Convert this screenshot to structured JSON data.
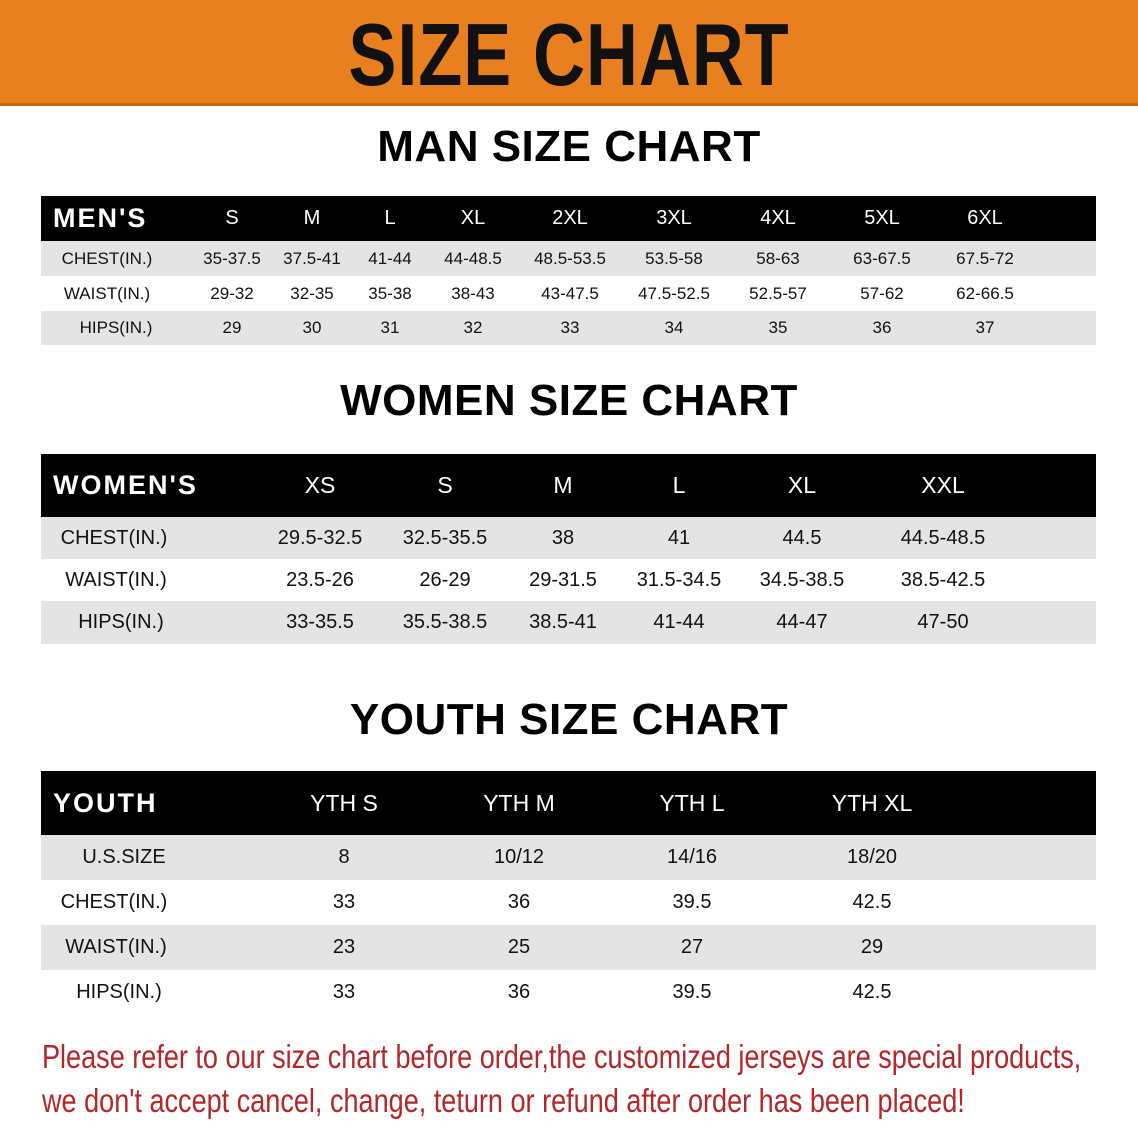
{
  "banner": {
    "title": "SIZE CHART",
    "color": "#e8801f"
  },
  "tables": [
    {
      "title": "MAN SIZE CHART",
      "header_label": "MEN'S",
      "sizes": [
        "S",
        "M",
        "L",
        "XL",
        "2XL",
        "3XL",
        "4XL",
        "5XL",
        "6XL"
      ],
      "rows": [
        {
          "label": "CHEST(IN.)",
          "values": [
            "35-37.5",
            "37.5-41",
            "41-44",
            "44-48.5",
            "48.5-53.5",
            "53.5-58",
            "58-63",
            "63-67.5",
            "67.5-72"
          ]
        },
        {
          "label": "WAIST(IN.)",
          "values": [
            "29-32",
            "32-35",
            "35-38",
            "38-43",
            "43-47.5",
            "47.5-52.5",
            "52.5-57",
            "57-62",
            "62-66.5"
          ]
        },
        {
          "label": "HIPS(IN.)",
          "values": [
            "29",
            "30",
            "31",
            "32",
            "33",
            "34",
            "35",
            "36",
            "37"
          ]
        }
      ]
    },
    {
      "title": "WOMEN SIZE CHART",
      "header_label": "WOMEN'S",
      "sizes": [
        "XS",
        "S",
        "M",
        "L",
        "XL",
        "XXL"
      ],
      "rows": [
        {
          "label": "CHEST(IN.)",
          "values": [
            "29.5-32.5",
            "32.5-35.5",
            "38",
            "41",
            "44.5",
            "44.5-48.5"
          ]
        },
        {
          "label": "WAIST(IN.)",
          "values": [
            "23.5-26",
            "26-29",
            "29-31.5",
            "31.5-34.5",
            "34.5-38.5",
            "38.5-42.5"
          ]
        },
        {
          "label": "HIPS(IN.)",
          "values": [
            "33-35.5",
            "35.5-38.5",
            "38.5-41",
            "41-44",
            "44-47",
            "47-50"
          ]
        }
      ]
    },
    {
      "title": "YOUTH SIZE CHART",
      "header_label": "YOUTH",
      "sizes": [
        "YTH S",
        "YTH M",
        "YTH L",
        "YTH XL"
      ],
      "rows": [
        {
          "label": "U.S.SIZE",
          "values": [
            "8",
            "10/12",
            "14/16",
            "18/20"
          ]
        },
        {
          "label": "CHEST(IN.)",
          "values": [
            "33",
            "36",
            "39.5",
            "42.5"
          ]
        },
        {
          "label": "WAIST(IN.)",
          "values": [
            "23",
            "25",
            "27",
            "29"
          ]
        },
        {
          "label": "HIPS(IN.)",
          "values": [
            "33",
            "36",
            "39.5",
            "42.5"
          ]
        }
      ]
    }
  ],
  "notice": {
    "line1": "Please refer to our size chart before order,the customized jerseys are special products,",
    "line2": "we don't accept cancel, change, teturn or refund after order has been placed!",
    "color": "#b3262a"
  }
}
